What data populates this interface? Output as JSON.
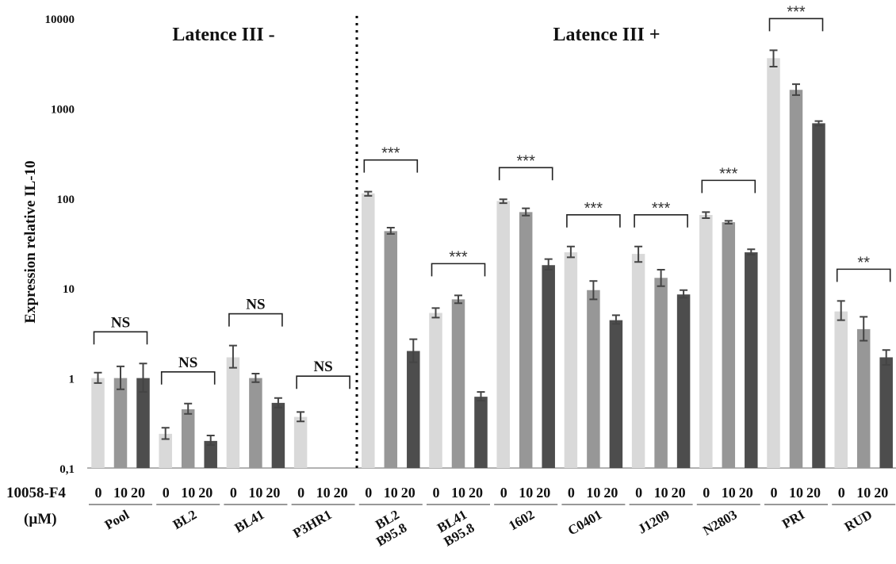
{
  "chart_data": {
    "type": "bar",
    "scale": "log",
    "ylabel": "Expression relative IL-10",
    "ylim": [
      0.1,
      10000
    ],
    "yticks": [
      "0,1",
      "1",
      "10",
      "100",
      "1000",
      "10000"
    ],
    "ytick_values": [
      0.1,
      1,
      10,
      100,
      1000,
      10000
    ],
    "x_axis_label": [
      "10058-F4",
      "(µM)"
    ],
    "dose_labels": [
      "0",
      "10",
      "20"
    ],
    "series": [
      {
        "name": "0",
        "color": "#d9d9d9"
      },
      {
        "name": "10",
        "color": "#979797"
      },
      {
        "name": "20",
        "color": "#4d4d4d"
      }
    ],
    "section_labels": [
      "Latence III -",
      "Latence III +"
    ],
    "groups": [
      {
        "name": [
          "Pool"
        ],
        "values": [
          1.0,
          1.0,
          1.0
        ],
        "errors": [
          [
            0.88,
            1.15
          ],
          [
            0.75,
            1.35
          ],
          [
            0.7,
            1.45
          ]
        ],
        "significance": "NS"
      },
      {
        "name": [
          "BL2"
        ],
        "values": [
          0.24,
          0.45,
          0.2
        ],
        "errors": [
          [
            0.21,
            0.28
          ],
          [
            0.4,
            0.52
          ],
          [
            0.18,
            0.23
          ]
        ],
        "significance": "NS"
      },
      {
        "name": [
          "BL41"
        ],
        "values": [
          1.7,
          1.0,
          0.53
        ],
        "errors": [
          [
            1.3,
            2.3
          ],
          [
            0.9,
            1.12
          ],
          [
            0.47,
            0.6
          ]
        ],
        "significance": "NS"
      },
      {
        "name": [
          "P3HR1"
        ],
        "values": [
          0.37,
          null,
          null
        ],
        "errors": [
          [
            0.33,
            0.42
          ],
          null,
          null
        ],
        "significance": "NS"
      },
      {
        "name": [
          "BL2",
          "B95.8"
        ],
        "values": [
          113,
          43,
          2.0
        ],
        "errors": [
          [
            106,
            118
          ],
          [
            40,
            47
          ],
          [
            1.5,
            2.7
          ]
        ],
        "significance": "***"
      },
      {
        "name": [
          "BL41",
          "B95.8"
        ],
        "values": [
          5.3,
          7.5,
          0.62
        ],
        "errors": [
          [
            4.7,
            6.0
          ],
          [
            6.8,
            8.3
          ],
          [
            0.56,
            0.7
          ]
        ],
        "significance": "***"
      },
      {
        "name": [
          "1602"
        ],
        "values": [
          93,
          70,
          18
        ],
        "errors": [
          [
            88,
            97
          ],
          [
            64,
            77
          ],
          [
            16,
            21
          ]
        ],
        "significance": "***"
      },
      {
        "name": [
          "C0401"
        ],
        "values": [
          25,
          9.5,
          4.4
        ],
        "errors": [
          [
            22,
            29
          ],
          [
            7.5,
            12
          ],
          [
            4.0,
            5.0
          ]
        ],
        "significance": "***"
      },
      {
        "name": [
          "J1209"
        ],
        "values": [
          24,
          13,
          8.5
        ],
        "errors": [
          [
            19.5,
            29
          ],
          [
            10.5,
            16
          ],
          [
            7.8,
            9.5
          ]
        ],
        "significance": "***"
      },
      {
        "name": [
          "N2803"
        ],
        "values": [
          65,
          54,
          25
        ],
        "errors": [
          [
            60,
            70
          ],
          [
            52,
            56
          ],
          [
            23.5,
            27
          ]
        ],
        "significance": "***"
      },
      {
        "name": [
          "PRI"
        ],
        "values": [
          3600,
          1600,
          680
        ],
        "errors": [
          [
            2900,
            4400
          ],
          [
            1400,
            1850
          ],
          [
            640,
            720
          ]
        ],
        "significance": "***"
      },
      {
        "name": [
          "RUD"
        ],
        "values": [
          5.5,
          3.5,
          1.7
        ],
        "errors": [
          [
            4.4,
            7.2
          ],
          [
            2.6,
            4.8
          ],
          [
            1.4,
            2.05
          ]
        ],
        "significance": "**"
      }
    ]
  }
}
